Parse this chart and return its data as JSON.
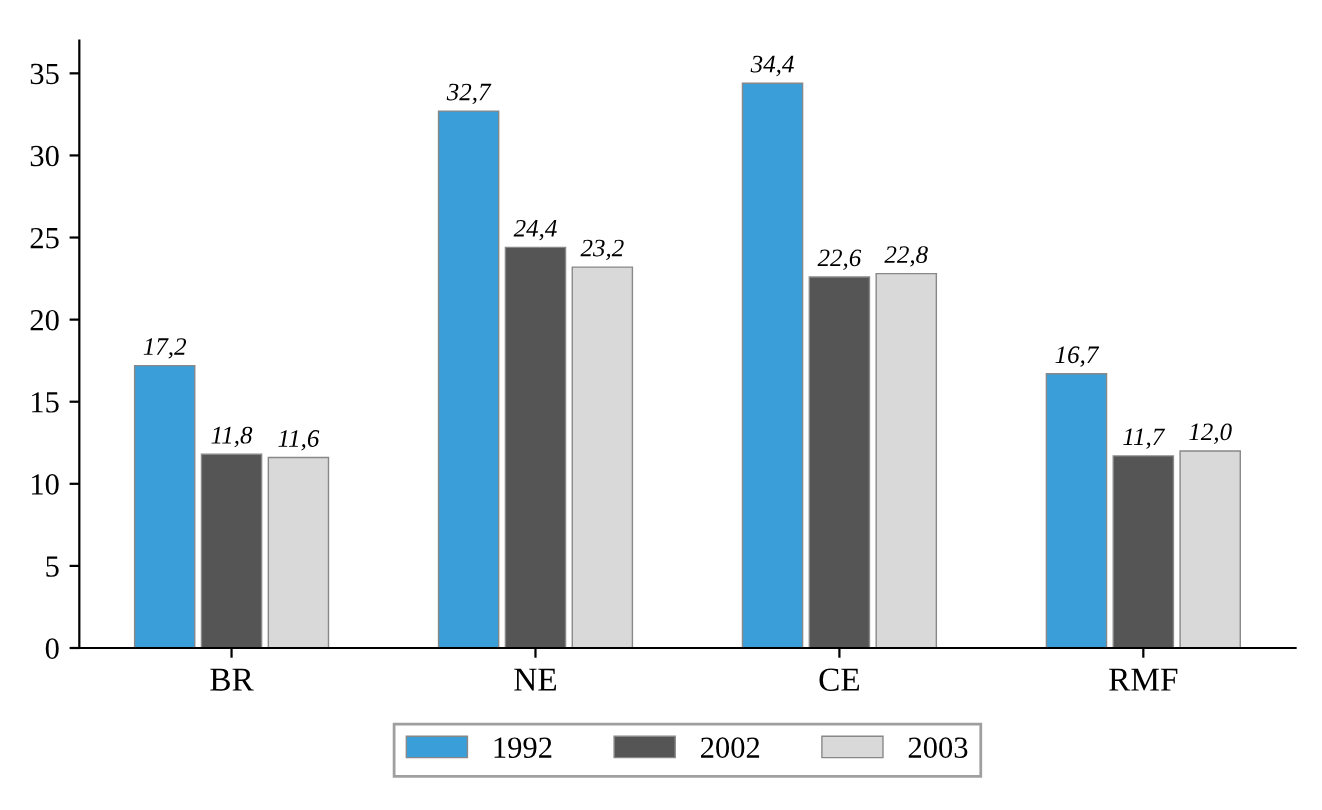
{
  "chart_data": {
    "type": "bar",
    "categories": [
      "BR",
      "NE",
      "CE",
      "RMF"
    ],
    "series": [
      {
        "name": "1992",
        "color": "#3a9fd8",
        "values": [
          17.2,
          32.7,
          34.4,
          16.7
        ],
        "value_labels": [
          "17,2",
          "32,7",
          "34,4",
          "16,7"
        ]
      },
      {
        "name": "2002",
        "color": "#555555",
        "values": [
          11.8,
          24.4,
          22.6,
          11.7
        ],
        "value_labels": [
          "11,8",
          "24,4",
          "22,6",
          "11,7"
        ]
      },
      {
        "name": "2003",
        "color": "#d9d9d9",
        "values": [
          11.6,
          23.2,
          22.8,
          12.0
        ],
        "value_labels": [
          "11,6",
          "23,2",
          "22,8",
          "12,0"
        ]
      }
    ],
    "ylim": [
      0,
      37
    ],
    "yticks": [
      0,
      5,
      10,
      15,
      20,
      25,
      30,
      35
    ],
    "grid": false,
    "legend": "bottom"
  }
}
